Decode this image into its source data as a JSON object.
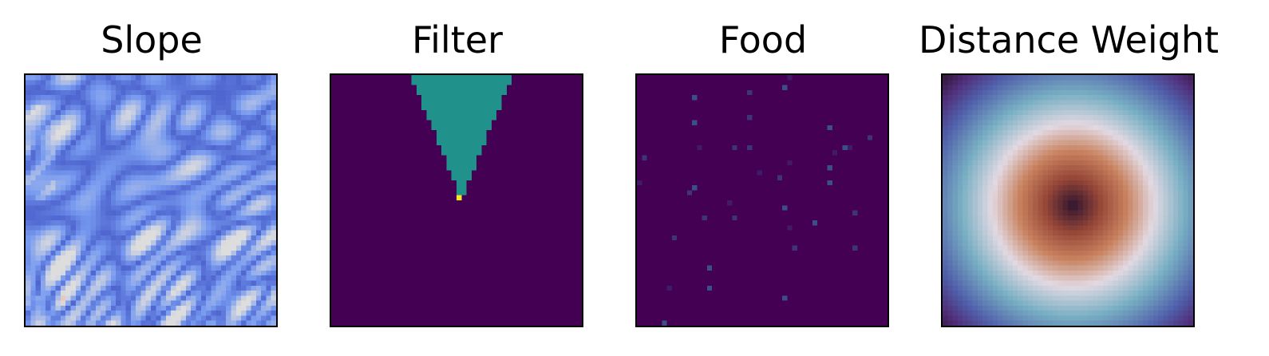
{
  "chart_data": [
    {
      "type": "heatmap",
      "title": "Slope",
      "colormap": "coolwarm",
      "grid_size": 50,
      "axes_ticks": false
    },
    {
      "type": "heatmap",
      "title": "Filter",
      "colormap": "viridis",
      "grid_size": 50,
      "axes_ticks": false,
      "values_shown": [
        0,
        1,
        2
      ]
    },
    {
      "type": "heatmap",
      "title": "Food",
      "colormap": "viridis",
      "grid_size": 50,
      "axes_ticks": false
    },
    {
      "type": "heatmap",
      "title": "Distance Weight",
      "colormap": "twilight_shifted",
      "grid_size": 50,
      "axes_ticks": false
    }
  ],
  "colors": {
    "viridis_low": "#440154",
    "viridis_mid": "#21918c",
    "viridis_high": "#fde725"
  }
}
